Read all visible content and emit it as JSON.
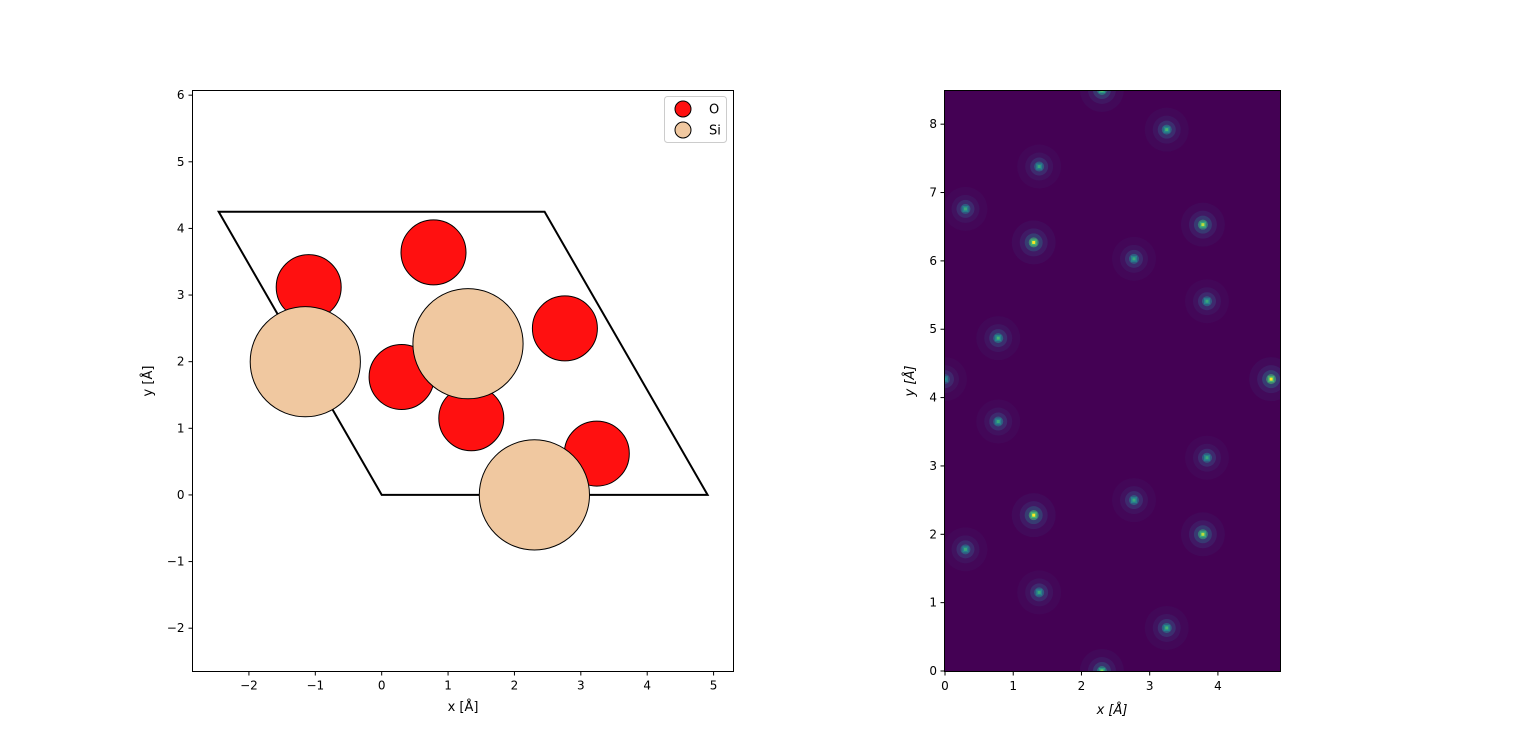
{
  "chart_data": [
    {
      "type": "scatter",
      "title": "",
      "xlabel": "x [Å]",
      "ylabel": "y [Å]",
      "xlim": [
        -2.85,
        5.3
      ],
      "ylim": [
        -2.65,
        6.07
      ],
      "xticks": [
        -2,
        -1,
        0,
        1,
        2,
        3,
        4,
        5
      ],
      "yticks": [
        -2,
        -1,
        0,
        1,
        2,
        3,
        4,
        5,
        6
      ],
      "xtick_labels": [
        "−2",
        "−1",
        "0",
        "1",
        "2",
        "3",
        "4",
        "5"
      ],
      "ytick_labels": [
        "−2",
        "−1",
        "0",
        "1",
        "2",
        "3",
        "4",
        "5",
        "6"
      ],
      "grid": false,
      "legend_position": "top-right",
      "cell_outline": [
        [
          0,
          0
        ],
        [
          4.91,
          0
        ],
        [
          2.455,
          4.25
        ],
        [
          -2.455,
          4.25
        ]
      ],
      "series": [
        {
          "name": "O",
          "color": "#ff1010",
          "radius": 0.49,
          "points": [
            [
              -1.1,
              3.12
            ],
            [
              0.78,
              3.64
            ],
            [
              2.76,
              2.5
            ],
            [
              0.3,
              1.77
            ],
            [
              1.35,
              1.15
            ],
            [
              3.24,
              0.62
            ]
          ]
        },
        {
          "name": "Si",
          "color": "#f0c8a0",
          "radius": 0.83,
          "points": [
            [
              -1.15,
              2.0
            ],
            [
              1.3,
              2.27
            ],
            [
              2.3,
              0.0
            ]
          ]
        }
      ]
    },
    {
      "type": "heatmap",
      "title": "",
      "xlabel": "x [Å]",
      "ylabel": "y [Å]",
      "xlim": [
        0,
        4.91
      ],
      "ylim": [
        0,
        8.5
      ],
      "xticks": [
        0,
        1,
        2,
        3,
        4
      ],
      "yticks": [
        0,
        1,
        2,
        3,
        4,
        5,
        6,
        7,
        8
      ],
      "xtick_labels": [
        "0",
        "1",
        "2",
        "3",
        "4"
      ],
      "ytick_labels": [
        "0",
        "1",
        "2",
        "3",
        "4",
        "5",
        "6",
        "7",
        "8"
      ],
      "colormap": "viridis",
      "background_color": "#440154",
      "peaks": [
        [
          2.3,
          8.5,
          0.8
        ],
        [
          3.25,
          7.92,
          0.65
        ],
        [
          1.38,
          7.38,
          0.6
        ],
        [
          0.3,
          6.76,
          0.6
        ],
        [
          1.3,
          6.27,
          1.0
        ],
        [
          3.78,
          6.53,
          0.9
        ],
        [
          2.77,
          6.03,
          0.6
        ],
        [
          3.84,
          5.41,
          0.6
        ],
        [
          0.78,
          4.87,
          0.65
        ],
        [
          4.78,
          4.27,
          1.0
        ],
        [
          0.0,
          4.27,
          0.5
        ],
        [
          0.78,
          3.65,
          0.6
        ],
        [
          3.84,
          3.12,
          0.6
        ],
        [
          2.77,
          2.5,
          0.6
        ],
        [
          1.3,
          2.28,
          1.0
        ],
        [
          3.78,
          2.0,
          0.9
        ],
        [
          0.3,
          1.78,
          0.6
        ],
        [
          1.38,
          1.15,
          0.6
        ],
        [
          3.25,
          0.63,
          0.65
        ],
        [
          2.3,
          0.0,
          0.8
        ]
      ]
    }
  ]
}
